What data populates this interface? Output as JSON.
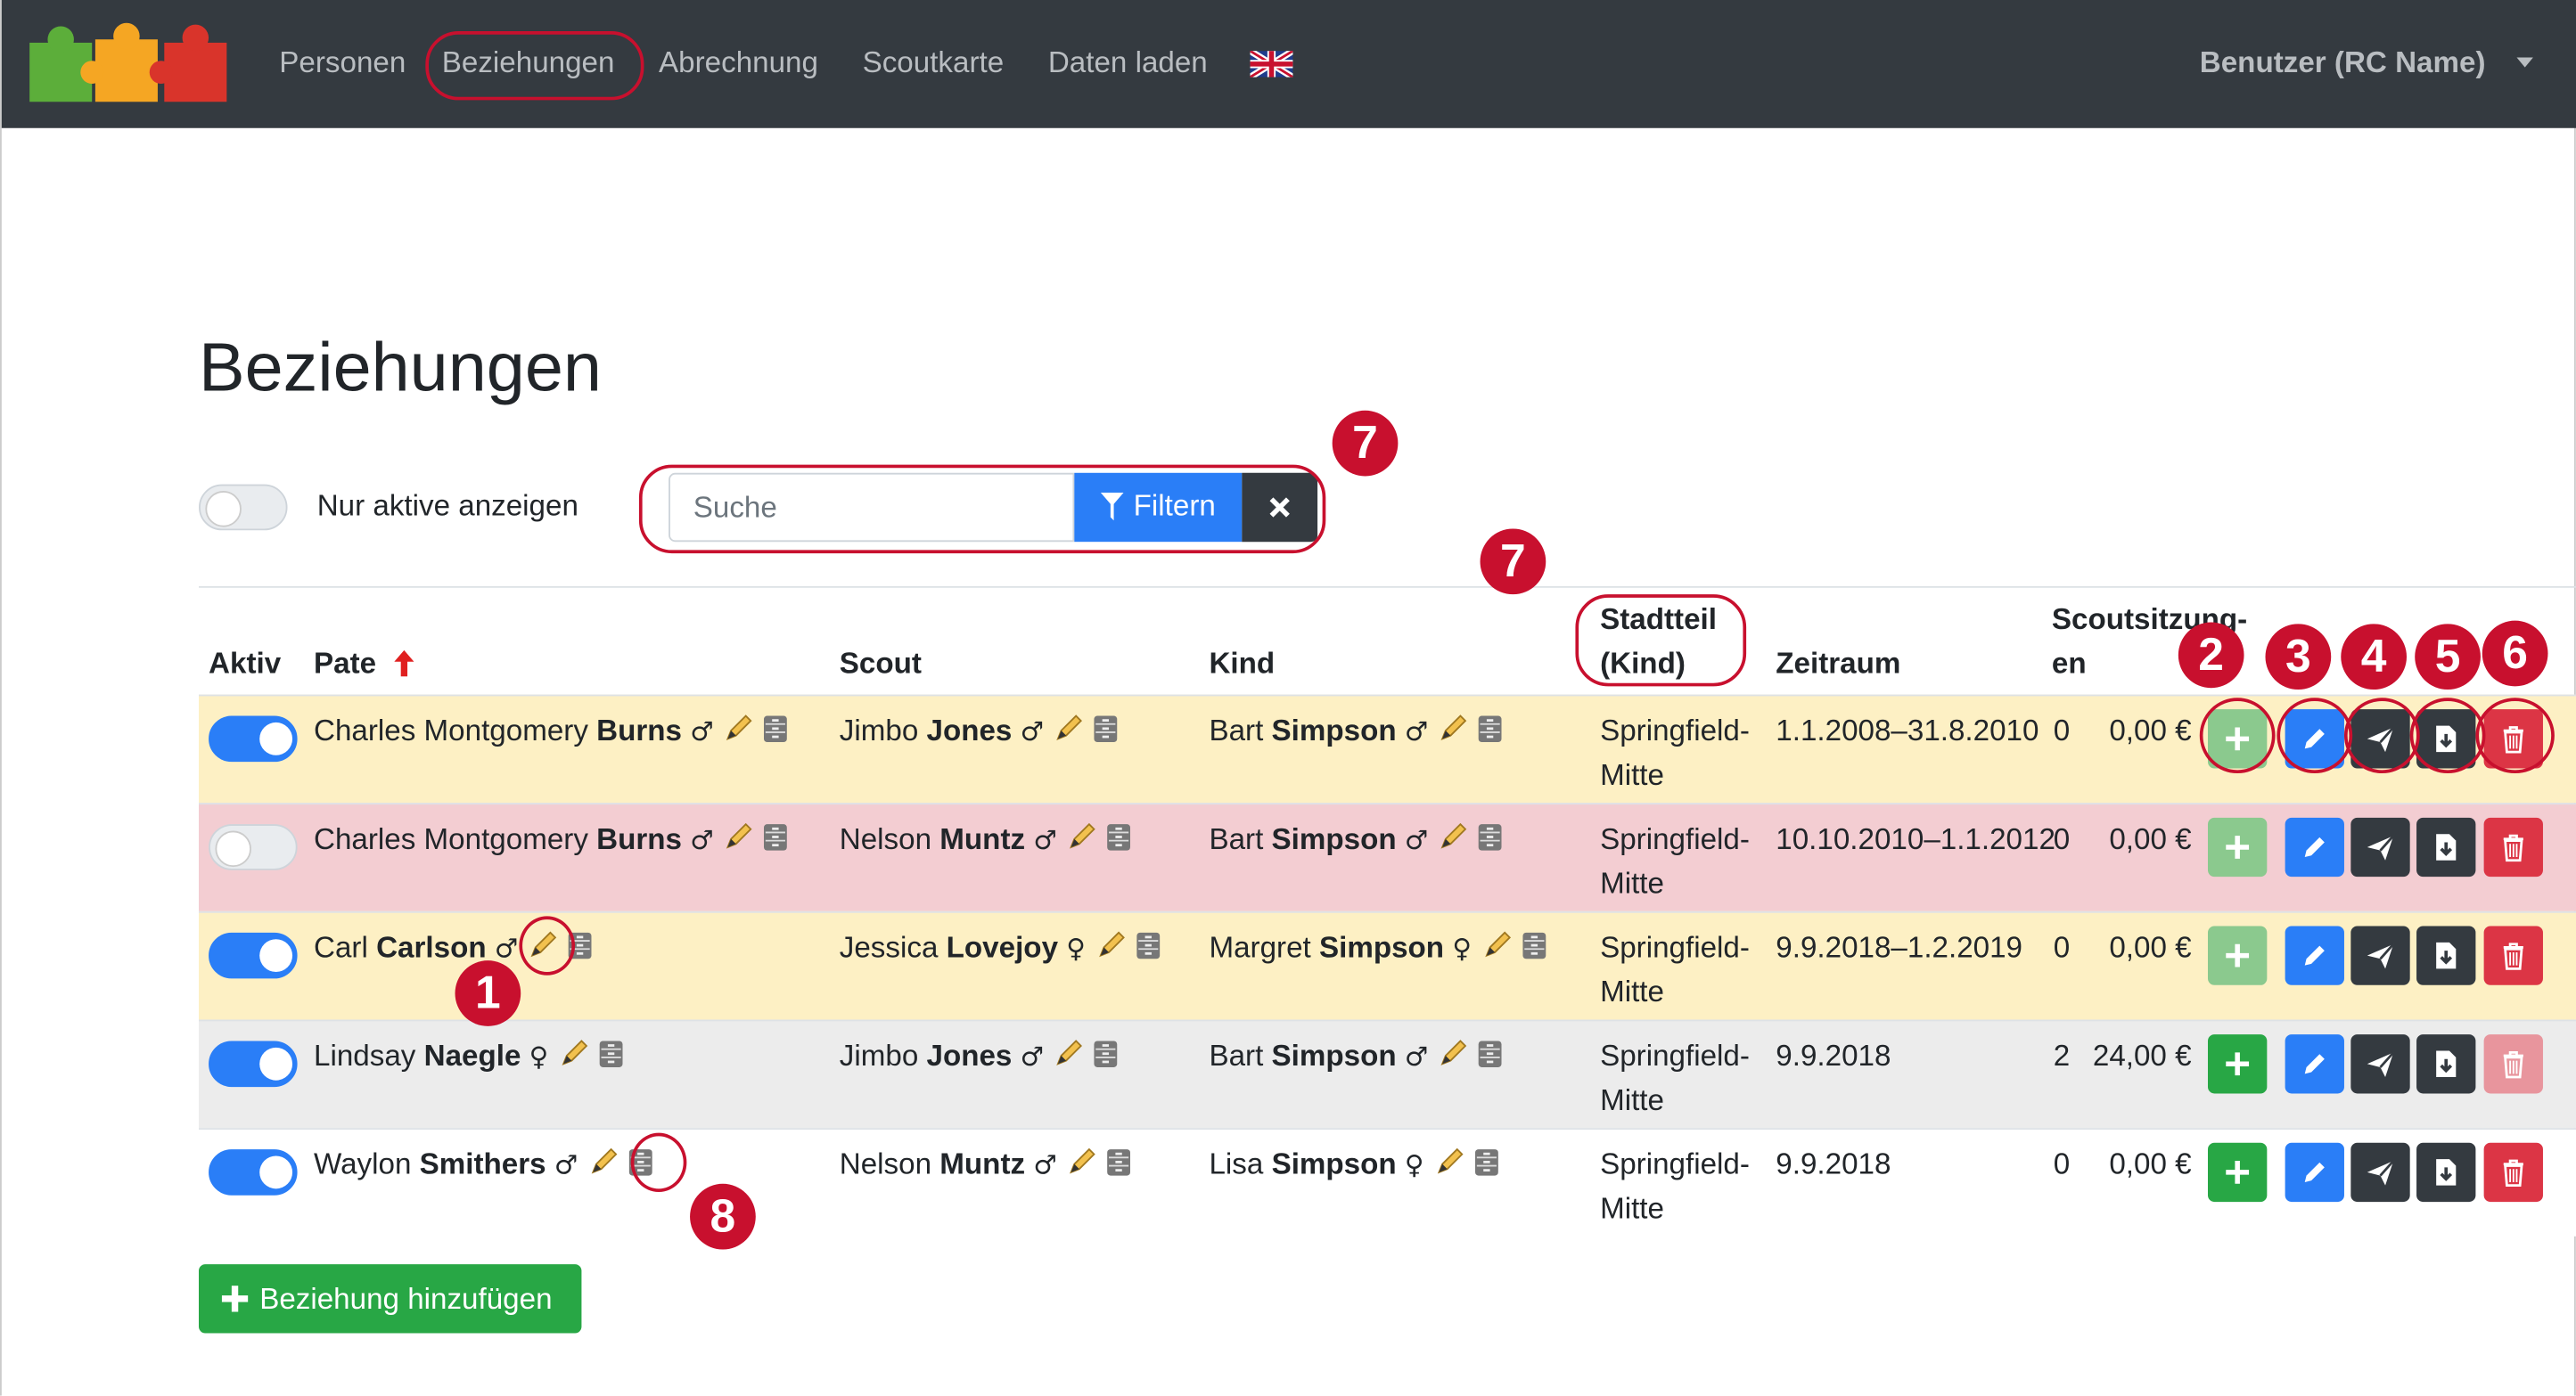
{
  "nav": {
    "items": [
      "Personen",
      "Beziehungen",
      "Abrechnung",
      "Scoutkarte",
      "Daten laden"
    ],
    "user": "Benutzer (RC Name)"
  },
  "title": "Beziehungen",
  "filter": {
    "toggle_label": "Nur aktive anzeigen",
    "search_placeholder": "Suche",
    "filter_button": "Filtern"
  },
  "table": {
    "headers": [
      "Aktiv",
      "Pate",
      "Scout",
      "Kind",
      "Stadtteil (Kind)",
      "Zeitraum",
      "Scoutsitzung-en"
    ],
    "rows": [
      {
        "aktiv": true,
        "color": "#fdf0c4",
        "pate": {
          "first": "Charles Montgomery",
          "last": "Burns",
          "gender": "♂"
        },
        "scout": {
          "first": "Jimbo",
          "last": "Jones",
          "gender": "♂"
        },
        "kind": {
          "first": "Bart",
          "last": "Simpson",
          "gender": "♂"
        },
        "stadtteil": "Springfield-Mitte",
        "zeitraum": "1.1.2008–31.8.2010",
        "sitzungen": 0,
        "betrag": "0,00 €",
        "add_enabled": false,
        "delete_enabled": true
      },
      {
        "aktiv": false,
        "color": "#f3cdd2",
        "pate": {
          "first": "Charles Montgomery",
          "last": "Burns",
          "gender": "♂"
        },
        "scout": {
          "first": "Nelson",
          "last": "Muntz",
          "gender": "♂"
        },
        "kind": {
          "first": "Bart",
          "last": "Simpson",
          "gender": "♂"
        },
        "stadtteil": "Springfield-Mitte",
        "zeitraum": "10.10.2010–1.1.2012",
        "sitzungen": 0,
        "betrag": "0,00 €",
        "add_enabled": false,
        "delete_enabled": true
      },
      {
        "aktiv": true,
        "color": "#fdf0c4",
        "pate": {
          "first": "Carl",
          "last": "Carlson",
          "gender": "♂"
        },
        "scout": {
          "first": "Jessica",
          "last": "Lovejoy",
          "gender": "♀"
        },
        "kind": {
          "first": "Margret",
          "last": "Simpson",
          "gender": "♀"
        },
        "stadtteil": "Springfield-Mitte",
        "zeitraum": "9.9.2018–1.2.2019",
        "sitzungen": 0,
        "betrag": "0,00 €",
        "add_enabled": false,
        "delete_enabled": true
      },
      {
        "aktiv": true,
        "color": "#ececec",
        "pate": {
          "first": "Lindsay",
          "last": "Naegle",
          "gender": "♀"
        },
        "scout": {
          "first": "Jimbo",
          "last": "Jones",
          "gender": "♂"
        },
        "kind": {
          "first": "Bart",
          "last": "Simpson",
          "gender": "♂"
        },
        "stadtteil": "Springfield-Mitte",
        "zeitraum": "9.9.2018",
        "sitzungen": 2,
        "betrag": "24,00 €",
        "add_enabled": true,
        "delete_enabled": false
      },
      {
        "aktiv": true,
        "color": "#ffffff",
        "pate": {
          "first": "Waylon",
          "last": "Smithers",
          "gender": "♂"
        },
        "scout": {
          "first": "Nelson",
          "last": "Muntz",
          "gender": "♂"
        },
        "kind": {
          "first": "Lisa",
          "last": "Simpson",
          "gender": "♀"
        },
        "stadtteil": "Springfield-Mitte",
        "zeitraum": "9.9.2018",
        "sitzungen": 0,
        "betrag": "0,00 €",
        "add_enabled": true,
        "delete_enabled": true
      }
    ]
  },
  "add_button": "Beziehung hinzufügen",
  "annotations": [
    "7",
    "7",
    "2",
    "3",
    "4",
    "5",
    "6",
    "1",
    "8"
  ]
}
